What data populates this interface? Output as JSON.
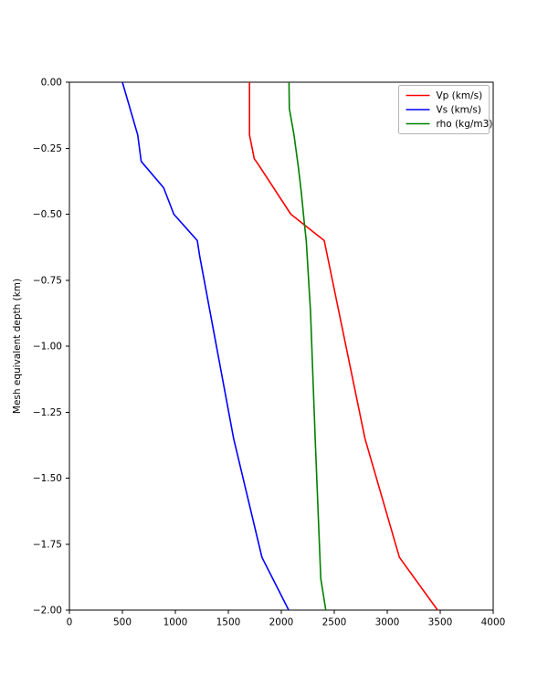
{
  "figure": {
    "background": "#ffffff",
    "spine_color": "#000000",
    "title": ""
  },
  "chart_data": {
    "type": "line",
    "title": "",
    "xlabel": "",
    "ylabel": "Mesh equivalent depth (km)",
    "xlim": [
      0,
      4000
    ],
    "ylim": [
      -2.0,
      0.0
    ],
    "xticks": [
      0,
      500,
      1000,
      1500,
      2000,
      2500,
      3000,
      3500,
      4000
    ],
    "yticks": [
      0.0,
      -0.25,
      -0.5,
      -0.75,
      -1.0,
      -1.25,
      -1.5,
      -1.75,
      -2.0
    ],
    "grid": false,
    "legend_position": "upper right",
    "series": [
      {
        "name": "Vp (km/s)",
        "color": "#ff0000",
        "points": [
          [
            1700,
            0.0
          ],
          [
            1700,
            -0.2
          ],
          [
            1745,
            -0.29
          ],
          [
            1780,
            -0.31
          ],
          [
            2090,
            -0.5
          ],
          [
            2405,
            -0.6
          ],
          [
            2600,
            -0.98
          ],
          [
            2790,
            -1.35
          ],
          [
            3115,
            -1.8
          ],
          [
            3475,
            -2.0
          ]
        ]
      },
      {
        "name": "Vs (km/s)",
        "color": "#0000ff",
        "points": [
          [
            500,
            0.0
          ],
          [
            645,
            -0.2
          ],
          [
            678,
            -0.3
          ],
          [
            890,
            -0.4
          ],
          [
            985,
            -0.5
          ],
          [
            1207,
            -0.6
          ],
          [
            1230,
            -0.66
          ],
          [
            1550,
            -1.35
          ],
          [
            1817,
            -1.8
          ],
          [
            2070,
            -2.0
          ]
        ]
      },
      {
        "name": "rho (kg/m3)",
        "color": "#008000",
        "points": [
          [
            2072,
            0.0
          ],
          [
            2076,
            -0.1
          ],
          [
            2120,
            -0.2
          ],
          [
            2160,
            -0.32
          ],
          [
            2190,
            -0.42
          ],
          [
            2216,
            -0.53
          ],
          [
            2235,
            -0.6
          ],
          [
            2276,
            -0.87
          ],
          [
            2320,
            -1.35
          ],
          [
            2372,
            -1.88
          ],
          [
            2420,
            -2.0
          ]
        ]
      }
    ]
  }
}
